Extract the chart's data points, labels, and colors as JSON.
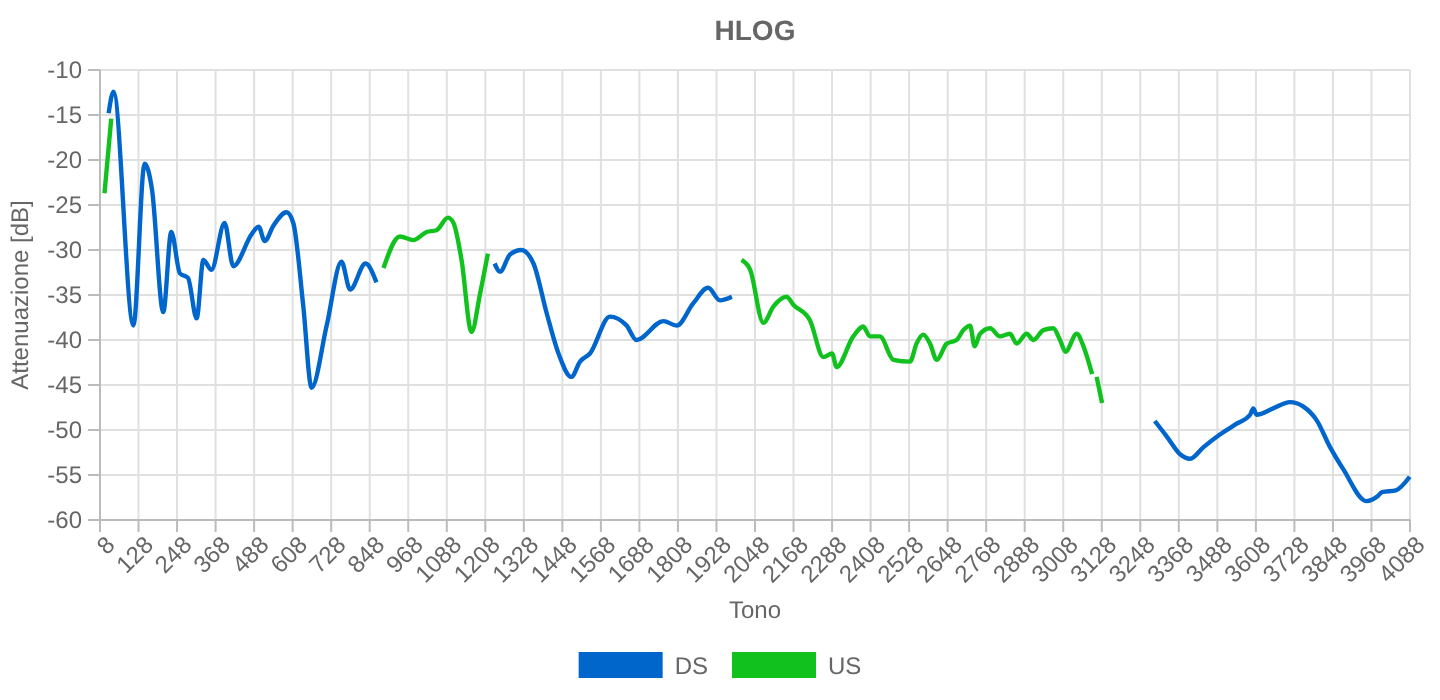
{
  "chart_data": {
    "type": "line",
    "title": "HLOG",
    "xlabel": "Tono",
    "ylabel": "Attenuazione [dB]",
    "xlim": [
      8,
      4088
    ],
    "ylim": [
      -60,
      -10
    ],
    "xticks": [
      8,
      128,
      248,
      368,
      488,
      608,
      728,
      848,
      968,
      1088,
      1208,
      1328,
      1448,
      1568,
      1688,
      1808,
      1928,
      2048,
      2168,
      2288,
      2408,
      2528,
      2648,
      2768,
      2888,
      3008,
      3128,
      3248,
      3368,
      3488,
      3608,
      3728,
      3848,
      3968,
      4088
    ],
    "yticks": [
      -60,
      -55,
      -50,
      -45,
      -40,
      -35,
      -30,
      -25,
      -20,
      -15,
      -10
    ],
    "grid": true,
    "legend": "bottom",
    "marker": "none",
    "line_style": "solid",
    "series": [
      {
        "name": "DS",
        "color": "#0066cc",
        "x": [
          35,
          50,
          112,
          147,
          170,
          205,
          230,
          257,
          282,
          309,
          330,
          355,
          396,
          423,
          481,
          502,
          521,
          548,
          589,
          610,
          641,
          667,
          714,
          760,
          787,
          835,
          869,
          1050,
          1237,
          1254,
          1285,
          1320,
          1358,
          1399,
          1436,
          1476,
          1503,
          1534,
          1596,
          1648,
          1679,
          1763,
          1804,
          1856,
          1902,
          1939,
          1976,
          2600,
          3293,
          3330,
          3372,
          3403,
          3445,
          3496,
          3548,
          3590,
          3600,
          3610,
          3662,
          3714,
          3756,
          3797,
          3839,
          3881,
          3952,
          3986,
          4001,
          4044,
          4087
        ],
        "values": [
          -14.8,
          -12.4,
          -38.4,
          -20.4,
          -23.3,
          -36.9,
          -28,
          -32.6,
          -33.1,
          -37.6,
          -31.1,
          -32.2,
          -27,
          -31.8,
          -28.2,
          -27.4,
          -29,
          -27.3,
          -25.8,
          -27,
          -36.2,
          -45.3,
          -38.4,
          -31.3,
          -34.4,
          -31.5,
          -33.6,
          null,
          -31.5,
          -32.4,
          -30.5,
          -30,
          -31.5,
          -37,
          -41.5,
          -44.1,
          -42.4,
          -41.5,
          -37.4,
          -38.4,
          -40,
          -37.9,
          -38.4,
          -35.9,
          -34.2,
          -35.6,
          -35.2,
          null,
          -49,
          -50.7,
          -52.7,
          -53.2,
          -51.9,
          -50.5,
          -49.3,
          -48.3,
          -47.6,
          -48.3,
          -47.6,
          -46.9,
          -47.4,
          -48.9,
          -51.9,
          -54.4,
          -57.9,
          -57.4,
          -56.9,
          -56.7,
          -55.2
        ]
      },
      {
        "name": "US",
        "color": "#11c21f",
        "x": [
          22,
          43,
          450,
          891,
          942,
          984,
          1025,
          1056,
          1092,
          1109,
          1134,
          1165,
          1192,
          1216,
          1600,
          2006,
          2033,
          2074,
          2105,
          2146,
          2168,
          2219,
          2261,
          2288,
          2302,
          2354,
          2385,
          2406,
          2437,
          2479,
          2531,
          2551,
          2572,
          2593,
          2614,
          2645,
          2676,
          2697,
          2718,
          2732,
          2749,
          2780,
          2811,
          2842,
          2863,
          2894,
          2915,
          2946,
          2977,
          2998,
          3015,
          3050,
          3071,
          3098,
          3105,
          3112,
          3129
        ],
        "values": [
          -23.7,
          -15.4,
          null,
          -32,
          -28.5,
          -28.9,
          -28,
          -27.8,
          -26.4,
          -27,
          -31.1,
          -39.1,
          -34.8,
          -30.4,
          null,
          -31.1,
          -32.2,
          -38.1,
          -36.3,
          -35.2,
          -36.1,
          -37.8,
          -41.9,
          -41.5,
          -43,
          -39.6,
          -38.5,
          -39.6,
          -39.6,
          -42.2,
          -42.4,
          -40.4,
          -39.4,
          -40.4,
          -42.2,
          -40.4,
          -40,
          -38.9,
          -38.4,
          -40.7,
          -39.3,
          -38.7,
          -39.6,
          -39.3,
          -40.4,
          -39.3,
          -40,
          -38.9,
          -38.7,
          -40,
          -41.3,
          -39.3,
          -40.7,
          -43.8,
          null,
          -44.1,
          -47
        ]
      }
    ]
  }
}
